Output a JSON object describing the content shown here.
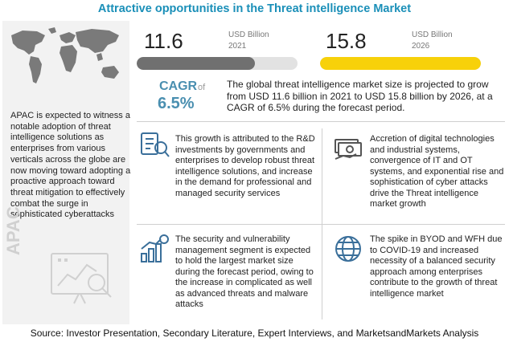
{
  "title": "Attractive opportunities in the Threat intelligence  Market",
  "chart_data": {
    "type": "bar",
    "categories": [
      "2021",
      "2026"
    ],
    "values": [
      11.6,
      15.8
    ],
    "unit": "USD Billion",
    "cagr_label": "CAGR",
    "cagr_of": "of",
    "cagr_value": "6.5%",
    "colors": [
      "#707070",
      "#f7d10a"
    ]
  },
  "left_panel": {
    "text": "APAC is expected to witness a notable adoption of threat intelligence solutions as enterprises from various verticals across the globe are now moving toward adopting a proactive approach toward threat mitigation to effectively combat the surge in sophisticated cyberattacks",
    "watermark": "APAC"
  },
  "summary": "The global threat intelligence market size is projected to grow from USD 11.6 billion in 2021 to USD 15.8 billion by 2026, at a CAGR of 6.5% during the forecast period.",
  "blocks": [
    {
      "icon": "research-icon",
      "text": "This growth is attributed to the R&D investments by governments and enterprises to develop robust threat intelligence solutions, and increase in the demand for professional and managed security services"
    },
    {
      "icon": "cash-icon",
      "text": "Accretion of digital technologies and industrial systems, convergence of IT and OT systems, and exponential rise and sophistication of cyber attacks drive the Threat intelligence market growth"
    },
    {
      "icon": "bar-growth-icon",
      "text": "The security and vulnerability management segment is expected to hold the largest market size during the forecast period, owing to the increase in complicated as well as advanced threats and malware attacks"
    },
    {
      "icon": "globe-icon",
      "text": "The spike in BYOD and WFH due to COVID-19 and increased necessity of a balanced security approach among enterprises contribute to the growth of threat intelligence market"
    }
  ],
  "source": "Source: Investor Presentation, Secondary Literature, Expert Interviews, and MarketsandMarkets Analysis"
}
